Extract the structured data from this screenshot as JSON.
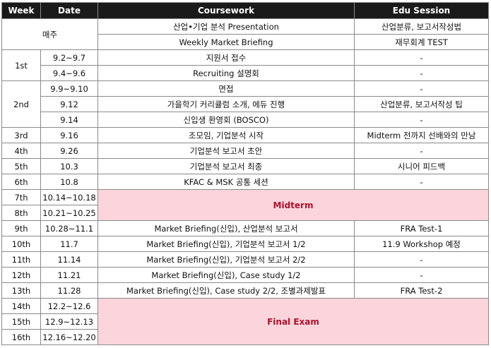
{
  "headers": {
    "week": "Week",
    "date": "Date",
    "coursework": "Coursework",
    "edu": "Edu Session"
  },
  "weekly": {
    "label": "매주",
    "rows": [
      {
        "coursework": "산업•기업 분석 Presentation",
        "edu": "산업분류, 보고서작성법"
      },
      {
        "coursework": "Weekly Market Briefing",
        "edu": "재무회계 TEST"
      }
    ]
  },
  "weeks": [
    {
      "week": "1st",
      "rows": [
        {
          "date": "9.2~9.7",
          "coursework": "지원서 접수",
          "edu": "-"
        },
        {
          "date": "9.4~9.6",
          "coursework": "Recruiting 설명회",
          "edu": "-"
        }
      ]
    },
    {
      "week": "2nd",
      "rows": [
        {
          "date": "9.9~9.10",
          "coursework": "면접",
          "edu": "-"
        },
        {
          "date": "9.12",
          "coursework": "가을학기 커리큘럼 소개, 에듀 진행",
          "edu": "산업분류, 보고서작성 팁"
        },
        {
          "date": "9.14",
          "coursework": "신입생 환영회 (BOSCO)",
          "edu": "-"
        }
      ]
    },
    {
      "week": "3rd",
      "rows": [
        {
          "date": "9.16",
          "coursework": "조모임, 기업분석 시작",
          "edu": "Midterm 전까지 선배와의 만남"
        }
      ]
    },
    {
      "week": "4th",
      "rows": [
        {
          "date": "9.26",
          "coursework": "기업분석 보고서 초안",
          "edu": "-"
        }
      ]
    },
    {
      "week": "5th",
      "rows": [
        {
          "date": "10.3",
          "coursework": "기업분석 보고서 최종",
          "edu": "시니어 피드백"
        }
      ]
    },
    {
      "week": "6th",
      "rows": [
        {
          "date": "10.8",
          "coursework": "KFAC & MSK 공통 세션",
          "edu": "-"
        }
      ]
    }
  ],
  "midterm": {
    "label": "Midterm",
    "rows": [
      {
        "week": "7th",
        "date": "10.14~10.18"
      },
      {
        "week": "8th",
        "date": "10.21~10.25"
      }
    ]
  },
  "weeks_after": [
    {
      "week": "9th",
      "date": "10.28~11.1",
      "coursework": "Market Briefing(신입), 산업분석 보고서",
      "edu": "FRA Test-1"
    },
    {
      "week": "10th",
      "date": "11.7",
      "coursework": "Market Briefing(신입), 기업분석 보고서 1/2",
      "edu": "11.9 Workshop 예정"
    },
    {
      "week": "11th",
      "date": "11.14",
      "coursework": "Market Briefing(신입), 기업분석 보고서 2/2",
      "edu": "-"
    },
    {
      "week": "12th",
      "date": "11.21",
      "coursework": "Market Briefing(신입), Case study 1/2",
      "edu": "-"
    },
    {
      "week": "13th",
      "date": "11.28",
      "coursework": "Market Briefing(신입), Case study 2/2, 조별과제발표",
      "edu": "FRA Test-2"
    }
  ],
  "final": {
    "label": "Final Exam",
    "rows": [
      {
        "week": "14th",
        "date": "12.2~12.6"
      },
      {
        "week": "15th",
        "date": "12.9~12.13"
      },
      {
        "week": "16th",
        "date": "12.16~12.20"
      }
    ]
  },
  "colors": {
    "header_bg": "#1a1a1a",
    "exam_bg": "#fcd5dc",
    "exam_text": "#b0112a",
    "border": "#8a8a8a"
  }
}
